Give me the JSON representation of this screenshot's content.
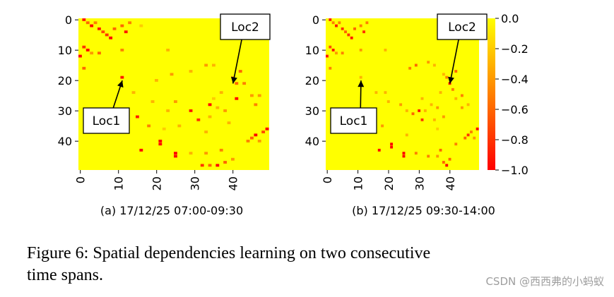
{
  "caption": {
    "line1": "Figure 6:  Spatial dependencies learning on two consecutive",
    "line2": "time spans."
  },
  "watermark": "CSDN @西西弗的小蚂蚁",
  "chart_data": {
    "type": "heatmap",
    "grid_size": 50,
    "colormap": "autumn",
    "colorbar": {
      "range": [
        -1.0,
        0.0
      ],
      "ticks": [
        0.0,
        -0.2,
        -0.4,
        -0.6,
        -0.8,
        -1.0
      ],
      "tick_labels": [
        "0.0",
        "−0.2",
        "−0.4",
        "−0.6",
        "−0.8",
        "−1.0"
      ],
      "colors": {
        "zero": "#ffff00",
        "minus_one": "#ff0000"
      }
    },
    "y_ticks": [
      "0",
      "10",
      "20",
      "30",
      "40"
    ],
    "x_ticks": [
      "0",
      "10",
      "20",
      "30",
      "40"
    ],
    "panels": [
      {
        "id": "a",
        "subtitle": "(a) 17/12/25 07:00-09:30",
        "annotations": [
          {
            "text": "Loc1",
            "target": [
              11,
              20
            ]
          },
          {
            "text": "Loc2",
            "target": [
              40,
              21
            ]
          }
        ],
        "cells": [
          [
            1,
            0,
            -0.9
          ],
          [
            2,
            1,
            -0.6
          ],
          [
            3,
            2,
            -1.0
          ],
          [
            4,
            1,
            -0.5
          ],
          [
            5,
            3,
            -0.9
          ],
          [
            6,
            4,
            -0.7
          ],
          [
            7,
            5,
            -0.8
          ],
          [
            8,
            6,
            -1.0
          ],
          [
            9,
            3,
            -0.6
          ],
          [
            11,
            2,
            -0.6
          ],
          [
            12,
            4,
            -0.9
          ],
          [
            13,
            1,
            -0.5
          ],
          [
            16,
            2,
            -0.2
          ],
          [
            1,
            9,
            -0.8
          ],
          [
            2,
            10,
            -1.0
          ],
          [
            3,
            11,
            -0.4
          ],
          [
            5,
            11,
            -0.6
          ],
          [
            0,
            12,
            -1.0
          ],
          [
            1,
            16,
            -0.6
          ],
          [
            11,
            10,
            -0.5
          ],
          [
            23,
            10,
            -0.3
          ],
          [
            11,
            19,
            -0.9
          ],
          [
            20,
            20,
            -0.3
          ],
          [
            24,
            18,
            -0.4
          ],
          [
            29,
            17,
            -0.3
          ],
          [
            33,
            15,
            -0.4
          ],
          [
            35,
            15,
            -0.3
          ],
          [
            40,
            19,
            -0.3
          ],
          [
            42,
            17,
            -0.6
          ],
          [
            41,
            21,
            -0.6
          ],
          [
            43,
            21,
            -0.5
          ],
          [
            41,
            26,
            -1.0
          ],
          [
            45,
            25,
            -0.4
          ],
          [
            47,
            25,
            -0.4
          ],
          [
            46,
            28,
            -0.5
          ],
          [
            14,
            24,
            -0.3
          ],
          [
            19,
            27,
            -0.3
          ],
          [
            23,
            30,
            -0.3
          ],
          [
            25,
            27,
            -0.4
          ],
          [
            26,
            35,
            -0.3
          ],
          [
            22,
            36,
            -0.2
          ],
          [
            37,
            24,
            -0.3
          ],
          [
            35,
            26,
            -0.2
          ],
          [
            34,
            28,
            -1.0
          ],
          [
            36,
            29,
            -0.3
          ],
          [
            38,
            30,
            -0.4
          ],
          [
            29,
            30,
            -0.9
          ],
          [
            15,
            32,
            -0.9
          ],
          [
            18,
            35,
            -0.5
          ],
          [
            21,
            40,
            -1.0
          ],
          [
            21,
            41,
            -1.0
          ],
          [
            16,
            43,
            -1.0
          ],
          [
            25,
            44,
            -1.0
          ],
          [
            25,
            45,
            -1.0
          ],
          [
            29,
            44,
            -0.3
          ],
          [
            33,
            44,
            -0.4
          ],
          [
            34,
            32,
            -0.3
          ],
          [
            31,
            33,
            -0.8
          ],
          [
            39,
            34,
            -0.3
          ],
          [
            33,
            37,
            -0.3
          ],
          [
            32,
            48,
            -0.8
          ],
          [
            34,
            48,
            -0.6
          ],
          [
            36,
            48,
            -1.0
          ],
          [
            38,
            47,
            -0.6
          ],
          [
            40,
            46,
            -0.4
          ],
          [
            37,
            43,
            -0.5
          ],
          [
            45,
            39,
            -0.6
          ],
          [
            46,
            38,
            -1.0
          ],
          [
            47,
            40,
            -0.4
          ],
          [
            48,
            37,
            -0.7
          ],
          [
            49,
            36,
            -1.0
          ],
          [
            44,
            40,
            -0.5
          ]
        ]
      },
      {
        "id": "b",
        "subtitle": "(b) 17/12/25 09:30-14:00",
        "annotations": [
          {
            "text": "Loc1",
            "target": [
              11,
              20
            ]
          },
          {
            "text": "Loc2",
            "target": [
              40,
              21
            ]
          }
        ],
        "cells": [
          [
            1,
            0,
            -0.9
          ],
          [
            2,
            1,
            -0.5
          ],
          [
            3,
            2,
            -0.9
          ],
          [
            4,
            1,
            -0.5
          ],
          [
            5,
            3,
            -0.8
          ],
          [
            6,
            4,
            -0.6
          ],
          [
            7,
            5,
            -0.8
          ],
          [
            8,
            6,
            -0.9
          ],
          [
            9,
            3,
            -0.6
          ],
          [
            11,
            2,
            -0.5
          ],
          [
            12,
            4,
            -0.8
          ],
          [
            13,
            1,
            -0.5
          ],
          [
            1,
            9,
            -0.7
          ],
          [
            2,
            10,
            -0.9
          ],
          [
            3,
            11,
            -0.4
          ],
          [
            5,
            11,
            -0.5
          ],
          [
            0,
            12,
            -0.9
          ],
          [
            1,
            16,
            -0.5
          ],
          [
            11,
            10,
            -0.4
          ],
          [
            19,
            10,
            -0.3
          ],
          [
            11,
            19,
            -0.3
          ],
          [
            27,
            16,
            -0.5
          ],
          [
            29,
            15,
            -0.6
          ],
          [
            33,
            14,
            -0.4
          ],
          [
            35,
            15,
            -0.3
          ],
          [
            38,
            18,
            -0.3
          ],
          [
            39,
            19,
            -0.5
          ],
          [
            42,
            17,
            -0.6
          ],
          [
            40,
            21,
            -0.9
          ],
          [
            41,
            23,
            -0.5
          ],
          [
            42,
            26,
            -0.3
          ],
          [
            44,
            25,
            -0.5
          ],
          [
            44,
            29,
            -0.4
          ],
          [
            46,
            28,
            -0.3
          ],
          [
            16,
            24,
            -0.3
          ],
          [
            19,
            24,
            -0.3
          ],
          [
            20,
            27,
            -0.3
          ],
          [
            24,
            28,
            -0.4
          ],
          [
            26,
            30,
            -0.3
          ],
          [
            31,
            26,
            -0.3
          ],
          [
            34,
            28,
            -0.3
          ],
          [
            36,
            29,
            -0.4
          ],
          [
            37,
            24,
            -0.3
          ],
          [
            30,
            30,
            -0.9
          ],
          [
            28,
            31,
            -0.6
          ],
          [
            32,
            30,
            -0.3
          ],
          [
            35,
            33,
            -0.3
          ],
          [
            18,
            35,
            -0.4
          ],
          [
            21,
            41,
            -1.0
          ],
          [
            21,
            42,
            -1.0
          ],
          [
            17,
            43,
            -1.0
          ],
          [
            25,
            44,
            -1.0
          ],
          [
            25,
            45,
            -1.0
          ],
          [
            26,
            38,
            -0.3
          ],
          [
            29,
            44,
            -0.5
          ],
          [
            33,
            45,
            -0.5
          ],
          [
            36,
            45,
            -0.4
          ],
          [
            31,
            33,
            -0.8
          ],
          [
            38,
            32,
            -0.4
          ],
          [
            37,
            43,
            -0.6
          ],
          [
            38,
            47,
            -0.6
          ],
          [
            39,
            48,
            -1.0
          ],
          [
            40,
            46,
            -0.6
          ],
          [
            42,
            41,
            -0.5
          ],
          [
            45,
            39,
            -0.6
          ],
          [
            46,
            38,
            -0.8
          ],
          [
            48,
            39,
            -0.4
          ],
          [
            49,
            36,
            -1.0
          ],
          [
            47,
            37,
            -0.5
          ],
          [
            36,
            36,
            -0.2
          ]
        ]
      }
    ]
  }
}
